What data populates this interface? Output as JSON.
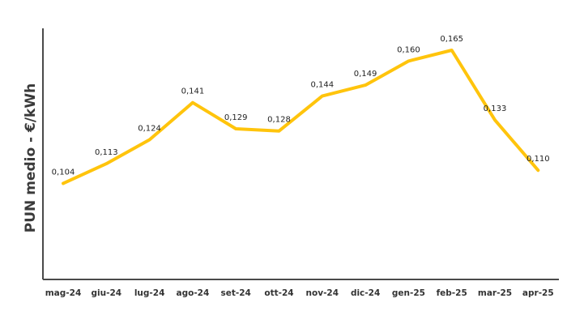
{
  "chart_data": {
    "type": "line",
    "title": "",
    "xlabel": "",
    "ylabel": "PUN medio - €/kWh",
    "categories": [
      "mag-24",
      "giu-24",
      "lug-24",
      "ago-24",
      "set-24",
      "ott-24",
      "nov-24",
      "dic-24",
      "gen-25",
      "feb-25",
      "mar-25",
      "apr-25"
    ],
    "series": [
      {
        "values": [
          0.104,
          0.113,
          0.124,
          0.141,
          0.129,
          0.128,
          0.144,
          0.149,
          0.16,
          0.165,
          0.133,
          0.11
        ],
        "labels": [
          "0,104",
          "0,113",
          "0,124",
          "0,141",
          "0,129",
          "0,128",
          "0,144",
          "0,149",
          "0,160",
          "0,165",
          "0,133",
          "0,110"
        ],
        "color": "#FFC40C"
      }
    ],
    "ylim": [
      0.06,
      0.175
    ],
    "grid": false,
    "legend": "none",
    "axis_color": "#4a4a4a"
  }
}
